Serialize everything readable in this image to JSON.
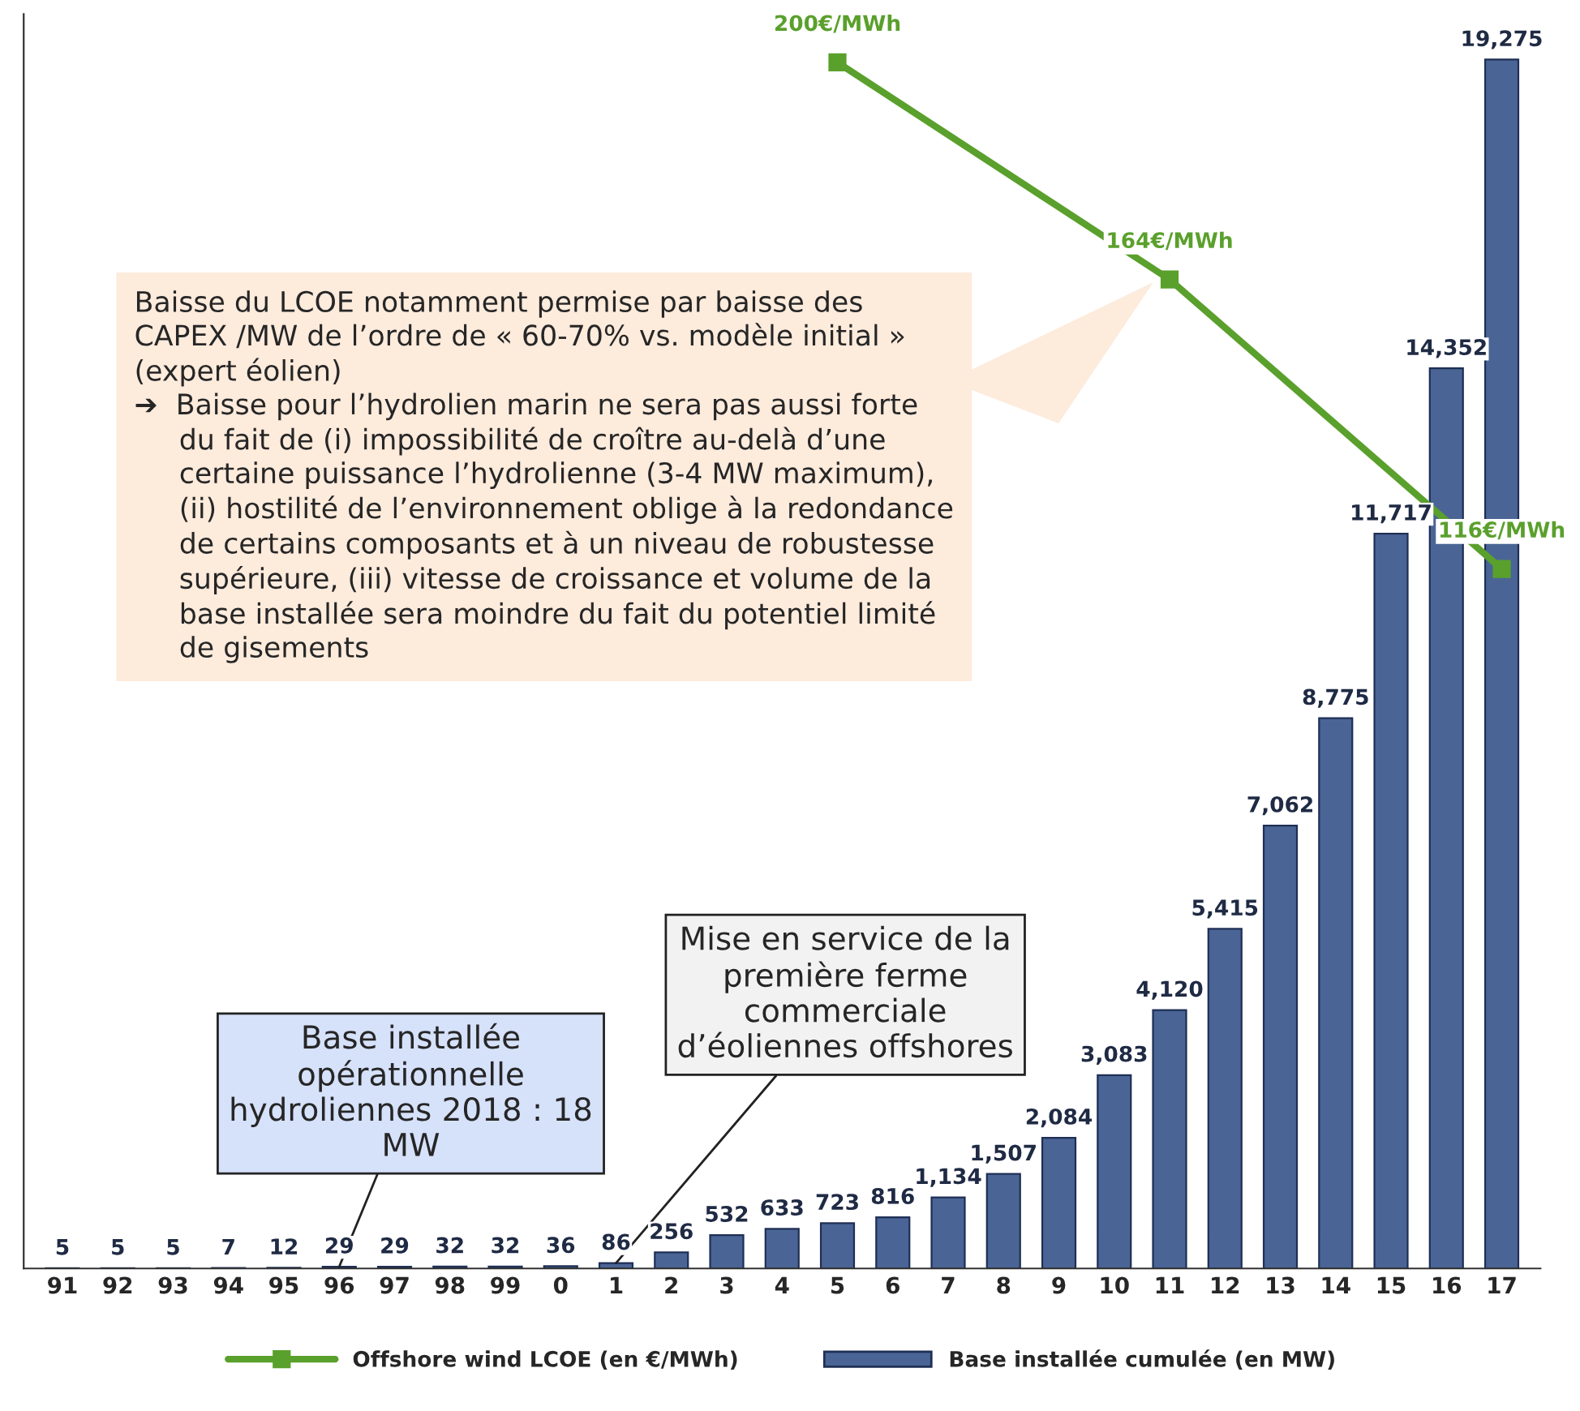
{
  "chart_data": {
    "type": "bar",
    "categories": [
      "91",
      "92",
      "93",
      "94",
      "95",
      "96",
      "97",
      "98",
      "99",
      "0",
      "1",
      "2",
      "3",
      "4",
      "5",
      "6",
      "7",
      "8",
      "9",
      "10",
      "11",
      "12",
      "13",
      "14",
      "15",
      "16",
      "17"
    ],
    "series": [
      {
        "name": "Base installée cumulée (en MW)",
        "color": "#4a6595",
        "values": [
          5,
          5,
          5,
          7,
          12,
          29,
          29,
          32,
          32,
          36,
          86,
          256,
          532,
          633,
          723,
          816,
          1134,
          1507,
          2084,
          3083,
          4120,
          5415,
          7062,
          8775,
          11717,
          14352,
          19275
        ],
        "value_labels": [
          "5",
          "5",
          "5",
          "7",
          "12",
          "29",
          "29",
          "32",
          "32",
          "36",
          "86",
          "256",
          "532",
          "633",
          "723",
          "816",
          "1,134",
          "1,507",
          "2,084",
          "3,083",
          "4,120",
          "5,415",
          "7,062",
          "8,775",
          "11,717",
          "14,352",
          "19,275"
        ]
      },
      {
        "name": "Offshore wind LCOE (en €/MWh)",
        "type": "line",
        "axis": "y2",
        "color": "#5aa02c",
        "marker": "square",
        "x": [
          "5",
          "11",
          "17"
        ],
        "values": [
          200,
          164,
          116
        ],
        "value_labels": [
          "200€/MWh",
          "164€/MWh",
          "116€/MWh"
        ]
      }
    ],
    "ylim": [
      0,
      20000
    ],
    "y2lim": [
      0,
      208
    ],
    "tick_labels": "x",
    "grid": false,
    "legend": "bottom",
    "annotations": [
      "Baisse du LCOE notamment permise par baisse des\nCAPEX /MW de l’ordre de « 60-70% vs. modèle initial »\n(expert éolien)\n➔  Baisse pour l’hydrolien marin ne sera pas aussi forte\n     du fait de (i) impossibilité de croître au-delà d’une\n     certaine puissance l’hydrolienne (3-4 MW maximum),\n     (ii) hostilité de l’environnement oblige à la redondance\n     de certains composants et à un niveau de robustesse\n     supérieure, (iii) vitesse de croissance et volume de la\n     base installée sera moindre du fait du potentiel limité\n     de gisements",
      {
        "text": "Base installée\nopérationnelle\nhydroliennes 2018 : 18\nMW",
        "x": "96",
        "y": 29
      },
      {
        "text": "Mise en service de la\npremière ferme\ncommerciale\nd’éoliennes offshores",
        "x": "1",
        "y": 86
      }
    ]
  }
}
